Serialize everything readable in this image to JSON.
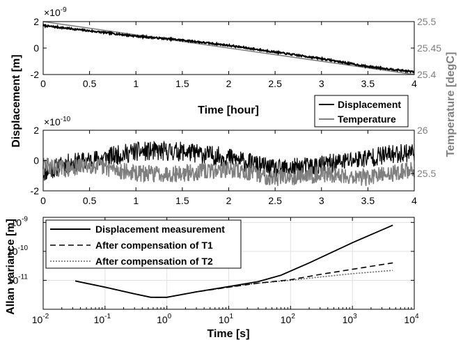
{
  "chart_data": [
    {
      "id": "top",
      "type": "line",
      "xlabel": "Time [hour]",
      "xlim": [
        0,
        4
      ],
      "xticks": [
        "0",
        "0.5",
        "1",
        "1.5",
        "2",
        "2.5",
        "3",
        "3.5",
        "4"
      ],
      "ylim": [
        -2,
        2
      ],
      "yticks": [
        "-2",
        "0",
        "2"
      ],
      "yexponent": "×10",
      "yexponent_power": "-9",
      "ylim_right": [
        25.4,
        25.5
      ],
      "yticks_right": [
        "25.4",
        "25.45",
        "25.5"
      ],
      "series": [
        {
          "name": "Displacement",
          "color": "#000000",
          "x": [
            0,
            0.25,
            0.5,
            1,
            1.5,
            2,
            2.5,
            3,
            3.5,
            4
          ],
          "values": [
            1.7,
            1.5,
            1.3,
            0.9,
            0.6,
            0.2,
            -0.3,
            -0.8,
            -1.4,
            -1.8
          ]
        },
        {
          "name": "Temperature",
          "color": "#7f7f7f",
          "x": [
            0,
            4
          ],
          "values": [
            25.5,
            25.4
          ]
        }
      ]
    },
    {
      "id": "middle",
      "type": "line",
      "xlim": [
        0,
        4
      ],
      "xticks": [
        "0",
        "0.5",
        "1",
        "1.5",
        "2",
        "2.5",
        "3",
        "3.5",
        "4"
      ],
      "ylim": [
        -2,
        2
      ],
      "yticks": [
        "-2",
        "0",
        "2"
      ],
      "yexponent": "×10",
      "yexponent_power": "-10",
      "ylim_right": [
        25.3,
        26.0
      ],
      "yticks_right": [
        "25.5",
        "26"
      ],
      "legend": {
        "placement": "top-right",
        "entries": [
          "Displacement",
          "Temperature"
        ]
      },
      "series": [
        {
          "name": "Displacement",
          "color": "#000000",
          "x": [
            0,
            0.25,
            0.5,
            1.0,
            1.5,
            2.0,
            2.5,
            3.0,
            3.5,
            4.0
          ],
          "values": [
            -0.8,
            -0.2,
            0.0,
            0.6,
            0.6,
            0.2,
            -0.6,
            -0.3,
            0.2,
            0.6
          ]
        },
        {
          "name": "Temperature",
          "color": "#7f7f7f",
          "x": [
            0,
            0.25,
            0.5,
            1.0,
            1.5,
            2.0,
            2.5,
            3.0,
            3.5,
            4.0
          ],
          "values": [
            25.6,
            25.55,
            25.6,
            25.5,
            25.5,
            25.55,
            25.45,
            25.5,
            25.45,
            25.55
          ]
        }
      ]
    },
    {
      "id": "bottom",
      "type": "line",
      "scale": "log-log",
      "xlabel": "Time [s]",
      "ylabel": "Allan variance [m]",
      "grid": true,
      "xlim": [
        0.01,
        10000
      ],
      "ylim": [
        1e-12,
        1.5e-09
      ],
      "xtick_base": [
        "10",
        "10",
        "10",
        "10",
        "10",
        "10",
        "10"
      ],
      "xtick_power": [
        "-2",
        "-1",
        "0",
        "1",
        "2",
        "3",
        "4"
      ],
      "ytick_base": [
        "10",
        "10",
        "10"
      ],
      "ytick_power": [
        "-11",
        "-10",
        "-9"
      ],
      "legend": {
        "placement": "top-left"
      },
      "series": [
        {
          "name": "Displacement measurement",
          "style": "solid",
          "x": [
            0.033,
            0.1,
            0.3,
            0.55,
            1,
            3,
            10,
            30,
            70,
            200,
            1000,
            4500
          ],
          "values": [
            9.5e-12,
            5.8e-12,
            3.4e-12,
            2.6e-12,
            2.6e-12,
            4e-12,
            6.1e-12,
            9e-12,
            1.5e-11,
            4e-11,
            2e-10,
            8e-10
          ]
        },
        {
          "name": "After compensation of T1",
          "style": "dashed",
          "x": [
            0.033,
            0.1,
            0.3,
            0.55,
            1,
            3,
            10,
            30,
            100,
            300,
            1000,
            4500
          ],
          "values": [
            9.5e-12,
            5.8e-12,
            3.4e-12,
            2.6e-12,
            2.6e-12,
            4e-12,
            5.8e-12,
            8e-12,
            1.05e-11,
            1.6e-11,
            2.4e-11,
            4e-11
          ]
        },
        {
          "name": "After compensation of T2",
          "style": "dotted",
          "x": [
            0.033,
            0.1,
            0.3,
            0.55,
            1,
            3,
            10,
            30,
            100,
            300,
            1000,
            4500
          ],
          "values": [
            9.5e-12,
            5.8e-12,
            3.4e-12,
            2.6e-12,
            2.6e-12,
            4e-12,
            5.8e-12,
            8e-12,
            1e-11,
            1.3e-11,
            1.7e-11,
            2.2e-11
          ]
        }
      ]
    }
  ],
  "shared": {
    "left_ylabel": "Displacement [m]",
    "right_ylabel": "Temperature [degC]"
  }
}
